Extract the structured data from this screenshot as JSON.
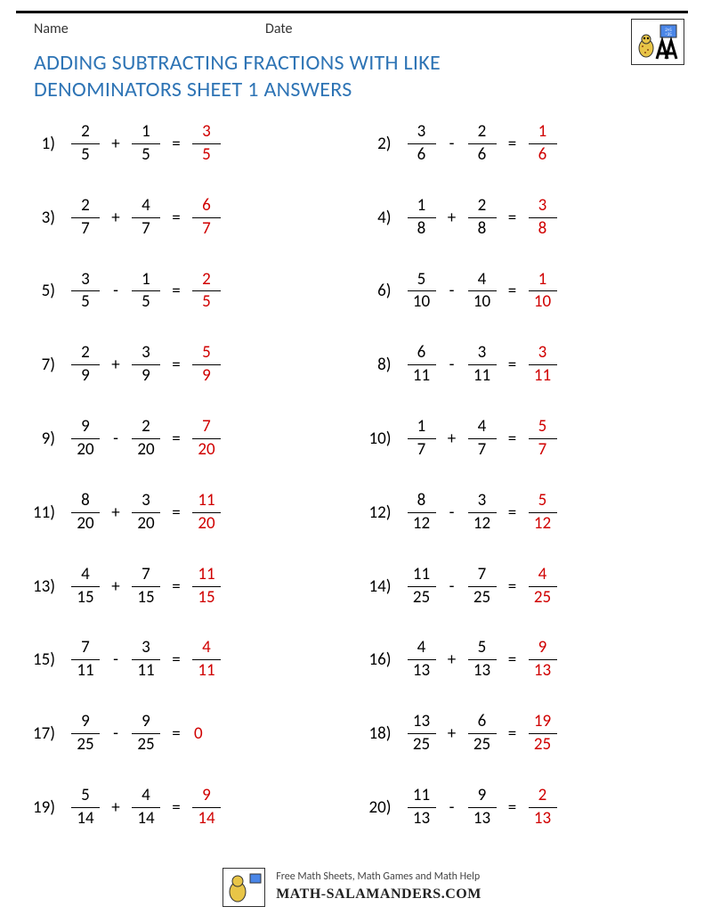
{
  "header": {
    "name_label": "Name",
    "date_label": "Date"
  },
  "title": "ADDING SUBTRACTING FRACTIONS WITH LIKE DENOMINATORS SHEET 1 ANSWERS",
  "title_color": "#2e74b5",
  "answer_color": "#d00000",
  "problems": [
    {
      "n": "1)",
      "a_num": "2",
      "a_den": "5",
      "op": "+",
      "b_num": "1",
      "b_den": "5",
      "r_num": "3",
      "r_den": "5"
    },
    {
      "n": "2)",
      "a_num": "3",
      "a_den": "6",
      "op": "-",
      "b_num": "2",
      "b_den": "6",
      "r_num": "1",
      "r_den": "6"
    },
    {
      "n": "3)",
      "a_num": "2",
      "a_den": "7",
      "op": "+",
      "b_num": "4",
      "b_den": "7",
      "r_num": "6",
      "r_den": "7"
    },
    {
      "n": "4)",
      "a_num": "1",
      "a_den": "8",
      "op": "+",
      "b_num": "2",
      "b_den": "8",
      "r_num": "3",
      "r_den": "8"
    },
    {
      "n": "5)",
      "a_num": "3",
      "a_den": "5",
      "op": "-",
      "b_num": "1",
      "b_den": "5",
      "r_num": "2",
      "r_den": "5"
    },
    {
      "n": "6)",
      "a_num": "5",
      "a_den": "10",
      "op": "-",
      "b_num": "4",
      "b_den": "10",
      "r_num": "1",
      "r_den": "10"
    },
    {
      "n": "7)",
      "a_num": "2",
      "a_den": "9",
      "op": "+",
      "b_num": "3",
      "b_den": "9",
      "r_num": "5",
      "r_den": "9"
    },
    {
      "n": "8)",
      "a_num": "6",
      "a_den": "11",
      "op": "-",
      "b_num": "3",
      "b_den": "11",
      "r_num": "3",
      "r_den": "11"
    },
    {
      "n": "9)",
      "a_num": "9",
      "a_den": "20",
      "op": "-",
      "b_num": "2",
      "b_den": "20",
      "r_num": "7",
      "r_den": "20"
    },
    {
      "n": "10)",
      "a_num": "1",
      "a_den": "7",
      "op": "+",
      "b_num": "4",
      "b_den": "7",
      "r_num": "5",
      "r_den": "7"
    },
    {
      "n": "11)",
      "a_num": "8",
      "a_den": "20",
      "op": "+",
      "b_num": "3",
      "b_den": "20",
      "r_num": "11",
      "r_den": "20"
    },
    {
      "n": "12)",
      "a_num": "8",
      "a_den": "12",
      "op": "-",
      "b_num": "3",
      "b_den": "12",
      "r_num": "5",
      "r_den": "12"
    },
    {
      "n": "13)",
      "a_num": "4",
      "a_den": "15",
      "op": "+",
      "b_num": "7",
      "b_den": "15",
      "r_num": "11",
      "r_den": "15"
    },
    {
      "n": "14)",
      "a_num": "11",
      "a_den": "25",
      "op": "-",
      "b_num": "7",
      "b_den": "25",
      "r_num": "4",
      "r_den": "25"
    },
    {
      "n": "15)",
      "a_num": "7",
      "a_den": "11",
      "op": "-",
      "b_num": "3",
      "b_den": "11",
      "r_num": "4",
      "r_den": "11"
    },
    {
      "n": "16)",
      "a_num": "4",
      "a_den": "13",
      "op": "+",
      "b_num": "5",
      "b_den": "13",
      "r_num": "9",
      "r_den": "13"
    },
    {
      "n": "17)",
      "a_num": "9",
      "a_den": "25",
      "op": "-",
      "b_num": "9",
      "b_den": "25",
      "r_whole": "0"
    },
    {
      "n": "18)",
      "a_num": "13",
      "a_den": "25",
      "op": "+",
      "b_num": "6",
      "b_den": "25",
      "r_num": "19",
      "r_den": "25"
    },
    {
      "n": "19)",
      "a_num": "5",
      "a_den": "14",
      "op": "+",
      "b_num": "4",
      "b_den": "14",
      "r_num": "9",
      "r_den": "14"
    },
    {
      "n": "20)",
      "a_num": "11",
      "a_den": "13",
      "op": "-",
      "b_num": "9",
      "b_den": "13",
      "r_num": "2",
      "r_den": "13"
    }
  ],
  "footer": {
    "tagline": "Free Math Sheets, Math Games and Math Help",
    "site": "MATH-SALAMANDERS.COM"
  }
}
